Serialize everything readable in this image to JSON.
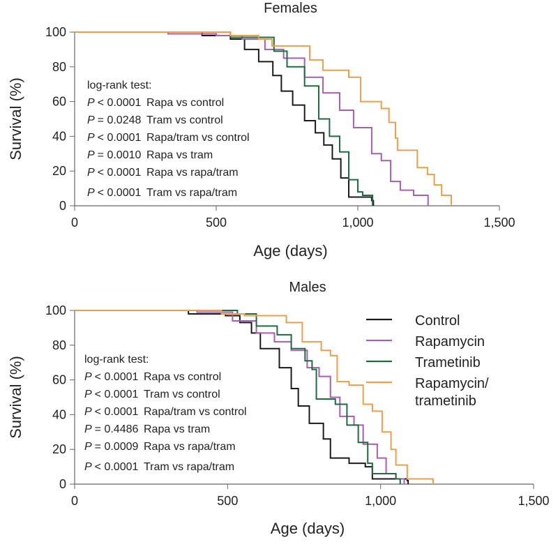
{
  "colors": {
    "Control": "#1a1a1a",
    "Rapamycin": "#a65fb0",
    "Trametinib": "#1e6b3f",
    "Rapamycin/trametinib": "#e8a14a"
  },
  "legend": {
    "placement": "right of Males panel",
    "entries": [
      {
        "key": "Control",
        "lines": [
          "Control"
        ]
      },
      {
        "key": "Rapamycin",
        "lines": [
          "Rapamycin"
        ]
      },
      {
        "key": "Trametinib",
        "lines": [
          "Trametinib"
        ]
      },
      {
        "key": "Rapamycin/trametinib",
        "lines": [
          "Rapamycin/",
          "trametinib"
        ]
      }
    ]
  },
  "chart_data": [
    {
      "type": "line",
      "step": true,
      "title": "Females",
      "xlabel": "Age (days)",
      "ylabel": "Survival (%)",
      "xlim": [
        0,
        1500
      ],
      "ylim": [
        0,
        100
      ],
      "xticks": [
        0,
        500,
        1000,
        1500
      ],
      "xtick_labels": [
        "0",
        "500",
        "1,000",
        "1,500"
      ],
      "yticks": [
        0,
        20,
        40,
        60,
        80,
        100
      ],
      "grid": false,
      "annotation": {
        "header": "log-rank test:",
        "rows": [
          {
            "p": "P",
            "op": "< 0.0001",
            "cmp": "Rapa vs control"
          },
          {
            "p": "P",
            "op": "= 0.0248",
            "cmp": "Tram vs control"
          },
          {
            "p": "P",
            "op": "< 0.0001",
            "cmp": "Rapa/tram vs control"
          },
          {
            "p": "P",
            "op": "= 0.0010",
            "cmp": "Rapa vs tram"
          },
          {
            "p": "P",
            "op": "< 0.0001",
            "cmp": "Rapa vs rapa/tram"
          },
          {
            "p": "P",
            "op": "< 0.0001",
            "cmp": "Tram vs rapa/tram"
          }
        ]
      },
      "series": [
        {
          "name": "Control",
          "points": [
            [
              0,
              100
            ],
            [
              400,
              100
            ],
            [
              450,
              98
            ],
            [
              550,
              96
            ],
            [
              600,
              90
            ],
            [
              650,
              83
            ],
            [
              700,
              75
            ],
            [
              730,
              66
            ],
            [
              770,
              58
            ],
            [
              812,
              49
            ],
            [
              850,
              42
            ],
            [
              880,
              35
            ],
            [
              910,
              27
            ],
            [
              940,
              16
            ],
            [
              968,
              5
            ],
            [
              1049,
              3
            ],
            [
              1055,
              0
            ]
          ]
        },
        {
          "name": "Rapamycin",
          "points": [
            [
              0,
              100
            ],
            [
              320,
              100
            ],
            [
              330,
              99
            ],
            [
              500,
              98
            ],
            [
              591,
              96
            ],
            [
              672,
              90
            ],
            [
              738,
              85
            ],
            [
              812,
              74
            ],
            [
              877,
              65
            ],
            [
              936,
              55
            ],
            [
              985,
              45
            ],
            [
              1049,
              30
            ],
            [
              1083,
              26
            ],
            [
              1116,
              14
            ],
            [
              1150,
              9
            ],
            [
              1197,
              6
            ],
            [
              1246,
              6
            ],
            [
              1248,
              0
            ]
          ]
        },
        {
          "name": "Trametinib",
          "points": [
            [
              0,
              100
            ],
            [
              500,
              100
            ],
            [
              550,
              97
            ],
            [
              650,
              97
            ],
            [
              704,
              89
            ],
            [
              750,
              80
            ],
            [
              812,
              69
            ],
            [
              862,
              50
            ],
            [
              900,
              40
            ],
            [
              936,
              31
            ],
            [
              968,
              15
            ],
            [
              1000,
              8
            ],
            [
              1017,
              6
            ],
            [
              1049,
              6
            ],
            [
              1052,
              0
            ]
          ]
        },
        {
          "name": "Rapamycin/trametinib",
          "points": [
            [
              0,
              100
            ],
            [
              480,
              100
            ],
            [
              550,
              98
            ],
            [
              650,
              96
            ],
            [
              697,
              92
            ],
            [
              778,
              92
            ],
            [
              830,
              84
            ],
            [
              877,
              78
            ],
            [
              968,
              74
            ],
            [
              1010,
              60
            ],
            [
              1083,
              56
            ],
            [
              1110,
              48
            ],
            [
              1133,
              39
            ],
            [
              1140,
              32
            ],
            [
              1197,
              32
            ],
            [
              1210,
              22
            ],
            [
              1246,
              18
            ],
            [
              1270,
              12
            ],
            [
              1296,
              6
            ],
            [
              1330,
              0
            ]
          ]
        }
      ]
    },
    {
      "type": "line",
      "step": true,
      "title": "Males",
      "xlabel": "Age (days)",
      "ylabel": "Survival (%)",
      "xlim": [
        0,
        1500
      ],
      "ylim": [
        0,
        100
      ],
      "xticks": [
        0,
        500,
        1000,
        1500
      ],
      "xtick_labels": [
        "0",
        "500",
        "1,000",
        "1,500"
      ],
      "yticks": [
        0,
        20,
        40,
        60,
        80,
        100
      ],
      "grid": false,
      "annotation": {
        "header": "log-rank test:",
        "rows": [
          {
            "p": "P",
            "op": "< 0.0001",
            "cmp": "Rapa vs control"
          },
          {
            "p": "P",
            "op": "< 0.0001",
            "cmp": "Tram vs control"
          },
          {
            "p": "P",
            "op": "< 0.0001",
            "cmp": "Rapa/tram vs control"
          },
          {
            "p": "P",
            "op": "= 0.4486",
            "cmp": "Rapa vs tram"
          },
          {
            "p": "P",
            "op": "= 0.0009",
            "cmp": "Rapa vs rapa/tram"
          },
          {
            "p": "P",
            "op": "< 0.0001",
            "cmp": "Tram vs rapa/tram"
          }
        ]
      },
      "series": [
        {
          "name": "Control",
          "points": [
            [
              0,
              100
            ],
            [
              280,
              100
            ],
            [
              372,
              98
            ],
            [
              493,
              97
            ],
            [
              540,
              93
            ],
            [
              578,
              87
            ],
            [
              607,
              78
            ],
            [
              669,
              67
            ],
            [
              708,
              55
            ],
            [
              731,
              45
            ],
            [
              767,
              35
            ],
            [
              813,
              26
            ],
            [
              836,
              15
            ],
            [
              897,
              12
            ],
            [
              950,
              10
            ],
            [
              973,
              3
            ],
            [
              1087,
              2
            ],
            [
              1090,
              0
            ]
          ]
        },
        {
          "name": "Rapamycin",
          "points": [
            [
              0,
              100
            ],
            [
              260,
              100
            ],
            [
              400,
              99
            ],
            [
              516,
              94
            ],
            [
              594,
              87
            ],
            [
              653,
              82
            ],
            [
              708,
              77
            ],
            [
              760,
              67
            ],
            [
              799,
              62
            ],
            [
              836,
              50
            ],
            [
              867,
              39
            ],
            [
              913,
              34
            ],
            [
              943,
              23
            ],
            [
              989,
              15
            ],
            [
              1018,
              6
            ],
            [
              1050,
              3
            ],
            [
              1077,
              0
            ]
          ]
        },
        {
          "name": "Trametinib",
          "points": [
            [
              0,
              100
            ],
            [
              450,
              100
            ],
            [
              532,
              98
            ],
            [
              594,
              91
            ],
            [
              662,
              86
            ],
            [
              708,
              78
            ],
            [
              753,
              71
            ],
            [
              776,
              66
            ],
            [
              790,
              49
            ],
            [
              852,
              46
            ],
            [
              890,
              34
            ],
            [
              927,
              24
            ],
            [
              958,
              12
            ],
            [
              973,
              6
            ],
            [
              1050,
              3
            ],
            [
              1064,
              0
            ]
          ]
        },
        {
          "name": "Rapamycin/trametinib",
          "points": [
            [
              0,
              100
            ],
            [
              400,
              100
            ],
            [
              480,
              98
            ],
            [
              555,
              97
            ],
            [
              692,
              93
            ],
            [
              744,
              82
            ],
            [
              806,
              77
            ],
            [
              836,
              74
            ],
            [
              858,
              59
            ],
            [
              897,
              57
            ],
            [
              943,
              46
            ],
            [
              973,
              42
            ],
            [
              1005,
              30
            ],
            [
              1034,
              20
            ],
            [
              1050,
              11
            ],
            [
              1087,
              3
            ],
            [
              1171,
              2
            ],
            [
              1172,
              0
            ]
          ]
        }
      ]
    }
  ]
}
